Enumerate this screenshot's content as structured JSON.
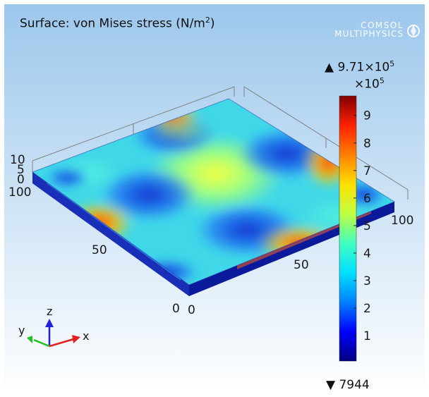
{
  "title": {
    "text": "Surface: von Mises stress (N/m",
    "sup": "2",
    "close": ")"
  },
  "logo": {
    "line1": "COMSOL",
    "line2": "MULTIPHYSICS",
    "icon": "comsol-logo-icon"
  },
  "colorbar": {
    "max_label": "▲ 9.71×10",
    "max_sup": "5",
    "multiplier": "×10",
    "multiplier_sup": "5",
    "min_label": "▼ 7944",
    "ticks": [
      "1",
      "2",
      "3",
      "4",
      "5",
      "6",
      "7",
      "8",
      "9"
    ],
    "colors": [
      "#000080",
      "#0000ff",
      "#0080ff",
      "#00e0ff",
      "#40ffc0",
      "#c0ff40",
      "#ffe000",
      "#ff8000",
      "#ff2000",
      "#800000"
    ]
  },
  "axes_triad": {
    "x": "x",
    "y": "y",
    "z": "z",
    "x_color": "#e02020",
    "y_color": "#20c020",
    "z_color": "#2020e0"
  },
  "chart_data": {
    "type": "heatmap",
    "title": "Surface: von Mises stress (N/m²)",
    "colorbar_range": [
      7944,
      971000
    ],
    "colorbar_multiplier": "×10^5",
    "colorbar_ticks": [
      1,
      2,
      3,
      4,
      5,
      6,
      7,
      8,
      9
    ],
    "x_ticks": [
      "0",
      "50",
      "100"
    ],
    "y_ticks": [
      "0",
      "50",
      "100"
    ],
    "z_ticks": [
      "0",
      "5",
      "10"
    ],
    "xlim": [
      0,
      100
    ],
    "ylim": [
      0,
      100
    ],
    "zlim": [
      0,
      10
    ]
  }
}
